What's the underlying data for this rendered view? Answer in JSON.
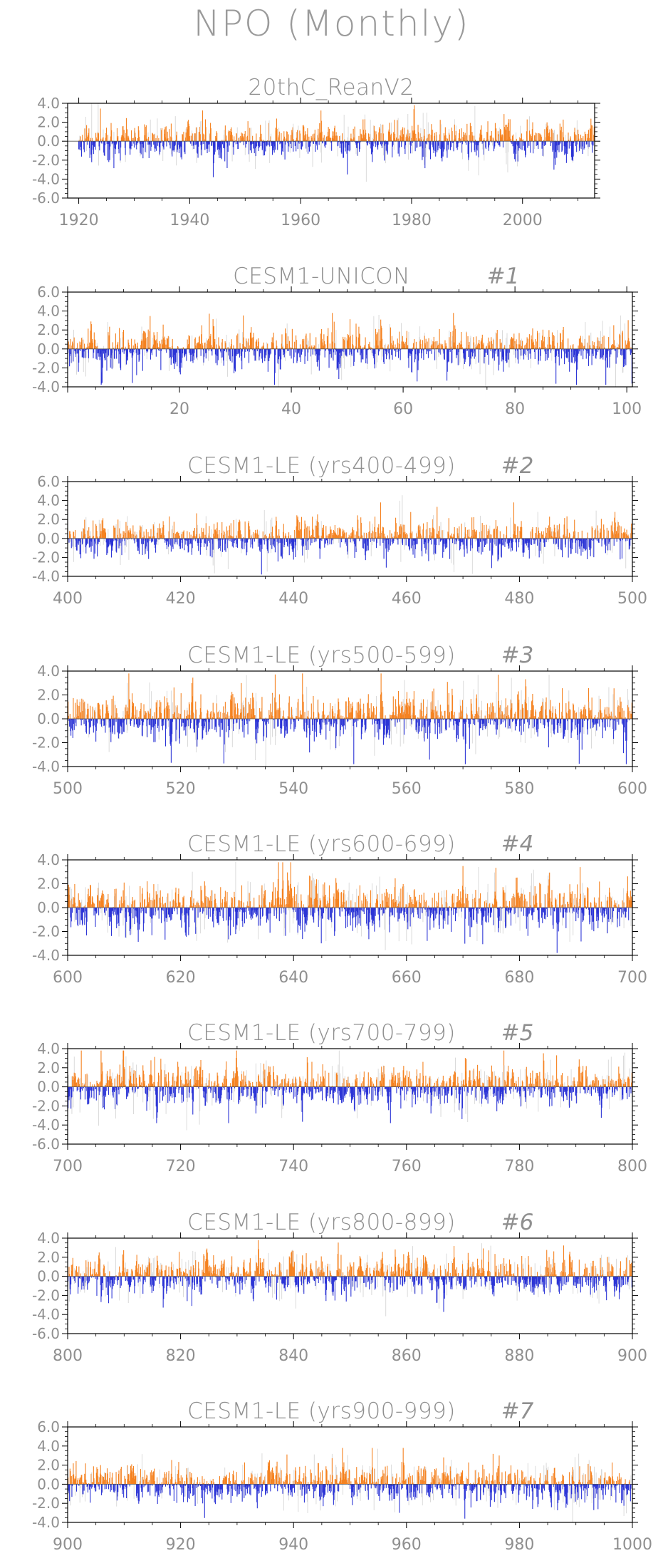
{
  "page": {
    "title": "NPO (Monthly)"
  },
  "colors": {
    "positive": "#f58220",
    "negative": "#2c35d6",
    "frame": "#000000",
    "text": "#8f8f8f",
    "light_bars": "#d6d6d6"
  },
  "chart_data": [
    {
      "type": "bar",
      "title": "20thC_ReanV2",
      "tag": "",
      "x_start": 1920,
      "x_end": 2012,
      "xlim": [
        1918,
        2013
      ],
      "ylim": [
        -6,
        4
      ],
      "xticks": [
        1920,
        1940,
        1960,
        1980,
        2000
      ],
      "xticklabels": [
        "1920",
        "1940",
        "1960",
        "1980",
        "2000"
      ],
      "yticks": [
        -6,
        -4,
        -2,
        0,
        2,
        4
      ],
      "yticklabels": [
        "-6.0",
        "-4.0",
        "-2.0",
        "0.0",
        "2.0",
        "4.0"
      ],
      "seed": 11
    },
    {
      "type": "bar",
      "title": "CESM1-UNICON",
      "tag": "#1",
      "x_start": 0,
      "x_end": 100,
      "xlim": [
        0,
        101
      ],
      "ylim": [
        -4,
        6
      ],
      "xticks": [
        20,
        40,
        60,
        80,
        100
      ],
      "xticklabels": [
        "20",
        "40",
        "60",
        "80",
        "100"
      ],
      "yticks": [
        -4,
        -2,
        0,
        2,
        4,
        6
      ],
      "yticklabels": [
        "-4.0",
        "-2.0",
        "0.0",
        "2.0",
        "4.0",
        "6.0"
      ],
      "seed": 23
    },
    {
      "type": "bar",
      "title": "CESM1-LE (yrs400-499)",
      "tag": "#2",
      "x_start": 400,
      "x_end": 499,
      "xlim": [
        400,
        500
      ],
      "ylim": [
        -4,
        6
      ],
      "xticks": [
        400,
        420,
        440,
        460,
        480,
        500
      ],
      "xticklabels": [
        "400",
        "420",
        "440",
        "460",
        "480",
        "500"
      ],
      "yticks": [
        -4,
        -2,
        0,
        2,
        4,
        6
      ],
      "yticklabels": [
        "-4.0",
        "-2.0",
        "0.0",
        "2.0",
        "4.0",
        "6.0"
      ],
      "seed": 37
    },
    {
      "type": "bar",
      "title": "CESM1-LE (yrs500-599)",
      "tag": "#3",
      "x_start": 500,
      "x_end": 599,
      "xlim": [
        500,
        600
      ],
      "ylim": [
        -4,
        4
      ],
      "xticks": [
        500,
        520,
        540,
        560,
        580,
        600
      ],
      "xticklabels": [
        "500",
        "520",
        "540",
        "560",
        "580",
        "600"
      ],
      "yticks": [
        -4,
        -2,
        0,
        2,
        4
      ],
      "yticklabels": [
        "-4.0",
        "-2.0",
        "0.0",
        "2.0",
        "4.0"
      ],
      "seed": 41
    },
    {
      "type": "bar",
      "title": "CESM1-LE (yrs600-699)",
      "tag": "#4",
      "x_start": 600,
      "x_end": 699,
      "xlim": [
        600,
        700
      ],
      "ylim": [
        -4,
        4
      ],
      "xticks": [
        600,
        620,
        640,
        660,
        680,
        700
      ],
      "xticklabels": [
        "600",
        "620",
        "640",
        "660",
        "680",
        "700"
      ],
      "yticks": [
        -4,
        -2,
        0,
        2,
        4
      ],
      "yticklabels": [
        "-4.0",
        "-2.0",
        "0.0",
        "2.0",
        "4.0"
      ],
      "seed": 53
    },
    {
      "type": "bar",
      "title": "CESM1-LE (yrs700-799)",
      "tag": "#5",
      "x_start": 700,
      "x_end": 799,
      "xlim": [
        700,
        800
      ],
      "ylim": [
        -6,
        4
      ],
      "xticks": [
        700,
        720,
        740,
        760,
        780,
        800
      ],
      "xticklabels": [
        "700",
        "720",
        "740",
        "760",
        "780",
        "800"
      ],
      "yticks": [
        -6,
        -4,
        -2,
        0,
        2,
        4
      ],
      "yticklabels": [
        "-6.0",
        "-4.0",
        "-2.0",
        "0.0",
        "2.0",
        "4.0"
      ],
      "seed": 67
    },
    {
      "type": "bar",
      "title": "CESM1-LE (yrs800-899)",
      "tag": "#6",
      "x_start": 800,
      "x_end": 899,
      "xlim": [
        800,
        900
      ],
      "ylim": [
        -6,
        4
      ],
      "xticks": [
        800,
        820,
        840,
        860,
        880,
        900
      ],
      "xticklabels": [
        "800",
        "820",
        "840",
        "860",
        "880",
        "900"
      ],
      "yticks": [
        -6,
        -4,
        -2,
        0,
        2,
        4
      ],
      "yticklabels": [
        "-6.0",
        "-4.0",
        "-2.0",
        "0.0",
        "2.0",
        "4.0"
      ],
      "seed": 79
    },
    {
      "type": "bar",
      "title": "CESM1-LE (yrs900-999)",
      "tag": "#7",
      "x_start": 900,
      "x_end": 999,
      "xlim": [
        900,
        1000
      ],
      "ylim": [
        -4,
        6
      ],
      "xticks": [
        900,
        920,
        940,
        960,
        980,
        1000
      ],
      "xticklabels": [
        "900",
        "920",
        "940",
        "960",
        "980",
        "1000"
      ],
      "yticks": [
        -4,
        -2,
        0,
        2,
        4,
        6
      ],
      "yticklabels": [
        "-4.0",
        "-2.0",
        "0.0",
        "2.0",
        "4.0",
        "6.0"
      ],
      "seed": 97
    }
  ]
}
